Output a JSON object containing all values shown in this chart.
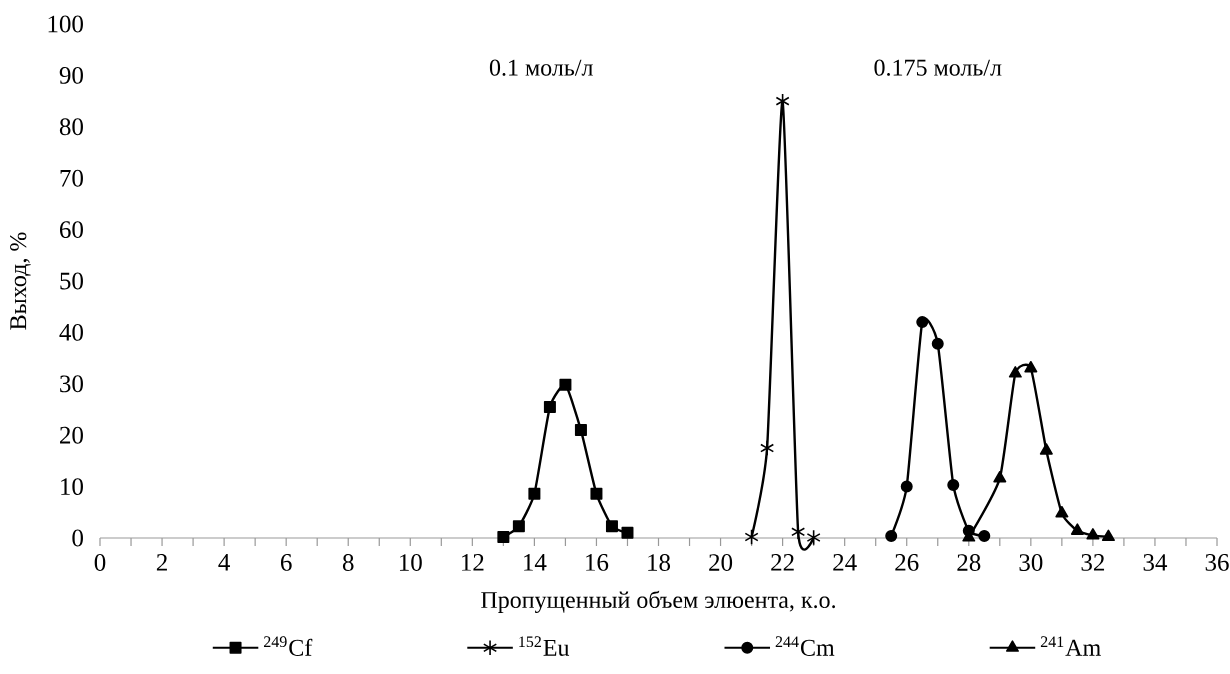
{
  "chart_data": {
    "type": "line",
    "xlabel": "Пропущенный объем элюента, к.о.",
    "ylabel": "Выход, %",
    "annotations": [
      "0.1 моль/л",
      "0.175 моль/л"
    ],
    "series": [
      {
        "name": "$^{249}$Cf",
        "color": "#000000",
        "marker": "square",
        "x": [
          13,
          13.5,
          14,
          14.5,
          15,
          15.5,
          16,
          16.5,
          17
        ],
        "values": [
          0.2,
          2.3,
          8.6,
          25.5,
          29.8,
          21,
          8.6,
          2.3,
          1.0
        ]
      },
      {
        "name": "$^{152}$Eu",
        "color": "#000000",
        "marker": "cross",
        "x": [
          21,
          21.5,
          22,
          22.5,
          23
        ],
        "values": [
          0.2,
          17.5,
          85,
          1.2,
          0.1
        ]
      },
      {
        "name": "$^{244}$Cm",
        "color": "#000000",
        "marker": "circle",
        "x": [
          25.5,
          26,
          26.5,
          27,
          27.5,
          28,
          28.5
        ],
        "values": [
          0.4,
          10,
          42,
          37.8,
          10.3,
          1.4,
          0.4
        ]
      },
      {
        "name": "$^{241}$Am",
        "color": "#000000",
        "marker": "triangle",
        "x": [
          28,
          29,
          29.5,
          30,
          30.5,
          31,
          31.5,
          32,
          32.5
        ],
        "values": [
          0.1,
          11.6,
          32,
          33,
          17,
          4.8,
          1.4,
          0.5,
          0.2
        ]
      }
    ],
    "xlim": [
      0,
      36
    ],
    "ylim": [
      0,
      100
    ],
    "xticks": [
      0,
      2,
      4,
      6,
      8,
      10,
      12,
      14,
      16,
      18,
      20,
      22,
      24,
      26,
      28,
      30,
      32,
      34,
      36
    ],
    "yticks": [
      0,
      10,
      20,
      30,
      40,
      50,
      60,
      70,
      80,
      90,
      100
    ],
    "grid": false,
    "legend": "bottom",
    "line_style": "solid"
  }
}
